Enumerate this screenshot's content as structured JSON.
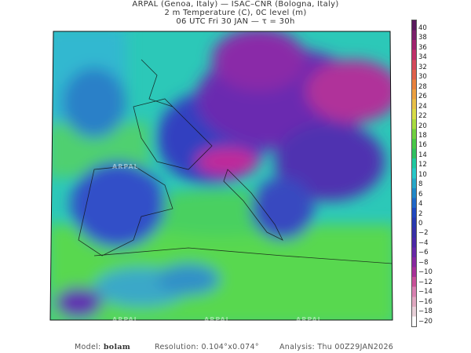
{
  "header": {
    "line1": "ARPAL (Genoa, Italy)  —  ISAC–CNR (Bologna, Italy)",
    "line2": "2 m Temperature (C), 0C level (m)",
    "line3": "06 UTC Fri 30 JAN  —  τ = 30h"
  },
  "colorbar": {
    "labels": [
      "40",
      "38",
      "36",
      "34",
      "32",
      "30",
      "28",
      "26",
      "24",
      "22",
      "20",
      "18",
      "16",
      "14",
      "12",
      "10",
      "8",
      "6",
      "4",
      "2",
      "0",
      "−2",
      "−4",
      "−6",
      "−8",
      "−10",
      "−12",
      "−14",
      "−16",
      "−18",
      "−20"
    ],
    "colors": [
      "#5a1a5e",
      "#7a1f6a",
      "#a0226e",
      "#c0306a",
      "#d4485a",
      "#e0604a",
      "#e8803c",
      "#eca040",
      "#e8c048",
      "#d8dc48",
      "#a8dc40",
      "#70d040",
      "#48c848",
      "#30c060",
      "#20c8a0",
      "#28c8c8",
      "#28a8c8",
      "#2088c8",
      "#2068c8",
      "#2048c0",
      "#2838b0",
      "#3830a8",
      "#4c28a8",
      "#6828a8",
      "#8828a0",
      "#a83098",
      "#c85098",
      "#d880b0",
      "#e0a8c0",
      "#e8d0d8",
      "#ffffff"
    ]
  },
  "map": {
    "watermark": "ARPAL",
    "colors": {
      "sea": "#2cc8b8",
      "sea_south": "#58d850",
      "land_cold": "#6a2ab0",
      "land_cool": "#3048c8",
      "alps": "#c02a9a"
    }
  },
  "footer": {
    "model_label": "Model:",
    "model": "bolam",
    "resolution": "Resolution: 0.104°x0.074°",
    "analysis": "Analysis: Thu  00Z29JAN2026"
  }
}
